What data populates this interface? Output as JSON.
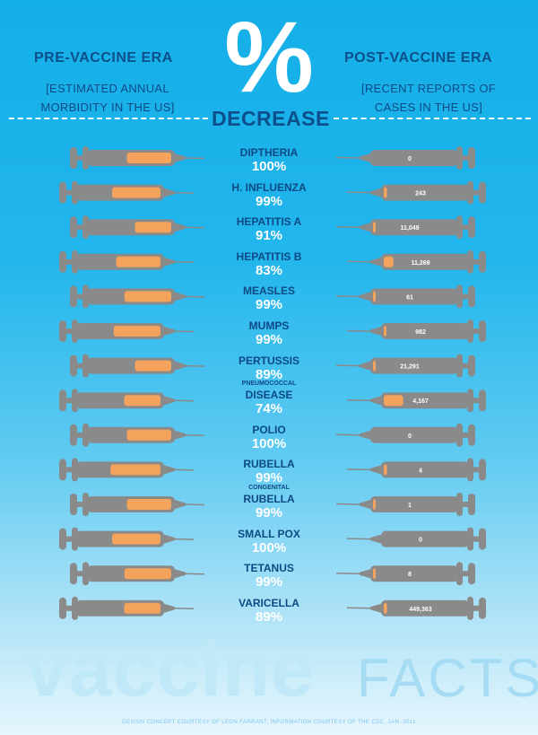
{
  "header": {
    "left_title": "PRE-VACCINE ERA",
    "left_sub_1": "[ESTIMATED ANNUAL",
    "left_sub_2": "MORBIDITY IN THE US]",
    "center_symbol": "%",
    "center_label": "DECREASE",
    "right_title": "POST-VACCINE ERA",
    "right_sub_1": "[RECENT REPORTS OF",
    "right_sub_2": "CASES IN THE US]"
  },
  "footer": {
    "title_bold": "vaccine",
    "title_light": "FACTS",
    "credit": "DESIGN CONCEPT COURTESY OF LEON FARRANT, INFORMATION COURTESY OF THE CDC, JAN. 2011"
  },
  "colors": {
    "background_top": "#14aee8",
    "background_bottom": "#e6f6fd",
    "heading": "#0c4f8a",
    "syringe_body": "#8a8a8a",
    "syringe_fill": "#f4a35d",
    "percent_text": "#ffffff"
  },
  "chart_data": {
    "type": "table",
    "columns": [
      "PRE-VACCINE ERA",
      "% DECREASE",
      "POST-VACCINE ERA"
    ],
    "rows": [
      {
        "disease": "DIPTHERIA",
        "decrease": "100%",
        "recent_cases": "0"
      },
      {
        "disease": "H. INFLUENZA",
        "decrease": "99%",
        "recent_cases": "243"
      },
      {
        "disease": "HEPATITIS A",
        "decrease": "91%",
        "recent_cases": "11,049"
      },
      {
        "disease": "HEPATITIS B",
        "decrease": "83%",
        "recent_cases": "11,269"
      },
      {
        "disease": "MEASLES",
        "decrease": "99%",
        "recent_cases": "61"
      },
      {
        "disease": "MUMPS",
        "decrease": "99%",
        "recent_cases": "982"
      },
      {
        "disease": "PERTUSSIS",
        "decrease": "89%",
        "recent_cases": "21,291"
      },
      {
        "disease_small": "PNEUMOCOCCAL",
        "disease": "DISEASE",
        "decrease": "74%",
        "recent_cases": "4,167"
      },
      {
        "disease": "POLIO",
        "decrease": "100%",
        "recent_cases": "0"
      },
      {
        "disease": "RUBELLA",
        "decrease": "99%",
        "recent_cases": "4"
      },
      {
        "disease_small": "CONGENITAL",
        "disease": "RUBELLA",
        "decrease": "99%",
        "recent_cases": "1"
      },
      {
        "disease": "SMALL POX",
        "decrease": "100%",
        "recent_cases": "0"
      },
      {
        "disease": "TETANUS",
        "decrease": "99%",
        "recent_cases": "8"
      },
      {
        "disease": "VARICELLA",
        "decrease": "89%",
        "recent_cases": "449,363"
      }
    ]
  }
}
